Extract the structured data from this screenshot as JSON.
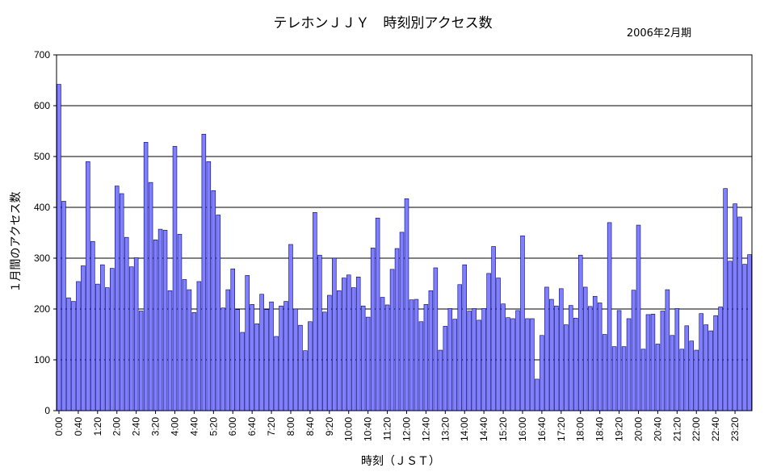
{
  "chart_data": {
    "type": "bar",
    "title": "テレホンＪＪＹ　時刻別アクセス数",
    "subtitle": "2006年2月期",
    "xlabel": "時刻（ＪＳＴ）",
    "ylabel": "１月間のアクセス数",
    "ylim": [
      0,
      700
    ],
    "yticks": [
      0,
      100,
      200,
      300,
      400,
      500,
      600,
      700
    ],
    "grid": true,
    "bar_color": "#8080FF",
    "bar_edge_color": "#000080",
    "interval_minutes": 10,
    "categories": [
      "0:00",
      "0:10",
      "0:20",
      "0:30",
      "0:40",
      "0:50",
      "1:00",
      "1:10",
      "1:20",
      "1:30",
      "1:40",
      "1:50",
      "2:00",
      "2:10",
      "2:20",
      "2:30",
      "2:40",
      "2:50",
      "3:00",
      "3:10",
      "3:20",
      "3:30",
      "3:40",
      "3:50",
      "4:00",
      "4:10",
      "4:20",
      "4:30",
      "4:40",
      "4:50",
      "5:00",
      "5:10",
      "5:20",
      "5:30",
      "5:40",
      "5:50",
      "6:00",
      "6:10",
      "6:20",
      "6:30",
      "6:40",
      "6:50",
      "7:00",
      "7:10",
      "7:20",
      "7:30",
      "7:40",
      "7:50",
      "8:00",
      "8:10",
      "8:20",
      "8:30",
      "8:40",
      "8:50",
      "9:00",
      "9:10",
      "9:20",
      "9:30",
      "9:40",
      "9:50",
      "10:00",
      "10:10",
      "10:20",
      "10:30",
      "10:40",
      "10:50",
      "11:00",
      "11:10",
      "11:20",
      "11:30",
      "11:40",
      "11:50",
      "12:00",
      "12:10",
      "12:20",
      "12:30",
      "12:40",
      "12:50",
      "13:00",
      "13:10",
      "13:20",
      "13:30",
      "13:40",
      "13:50",
      "14:00",
      "14:10",
      "14:20",
      "14:30",
      "14:40",
      "14:50",
      "15:00",
      "15:10",
      "15:20",
      "15:30",
      "15:40",
      "15:50",
      "16:00",
      "16:10",
      "16:20",
      "16:30",
      "16:40",
      "16:50",
      "17:00",
      "17:10",
      "17:20",
      "17:30",
      "17:40",
      "17:50",
      "18:00",
      "18:10",
      "18:20",
      "18:30",
      "18:40",
      "18:50",
      "19:00",
      "19:10",
      "19:20",
      "19:30",
      "19:40",
      "19:50",
      "20:00",
      "20:10",
      "20:20",
      "20:30",
      "20:40",
      "20:50",
      "21:00",
      "21:10",
      "21:20",
      "21:30",
      "21:40",
      "21:50",
      "22:00",
      "22:10",
      "22:20",
      "22:30",
      "22:40",
      "22:50",
      "23:00",
      "23:10",
      "23:20",
      "23:30",
      "23:40",
      "23:50"
    ],
    "tick_labels": [
      "0:00",
      "0:40",
      "1:20",
      "2:00",
      "2:40",
      "3:20",
      "4:00",
      "4:40",
      "5:20",
      "6:00",
      "6:40",
      "7:20",
      "8:00",
      "8:40",
      "9:20",
      "10:00",
      "10:40",
      "11:20",
      "12:00",
      "12:40",
      "13:20",
      "14:00",
      "14:40",
      "15:20",
      "16:00",
      "16:40",
      "17:20",
      "18:00",
      "18:40",
      "19:20",
      "20:00",
      "20:40",
      "21:20",
      "22:00",
      "22:40",
      "23:20"
    ],
    "values": [
      642,
      412,
      222,
      215,
      254,
      285,
      490,
      333,
      249,
      287,
      242,
      280,
      442,
      427,
      341,
      283,
      301,
      196,
      528,
      449,
      336,
      357,
      355,
      236,
      520,
      347,
      258,
      238,
      193,
      254,
      544,
      490,
      433,
      385,
      202,
      238,
      279,
      199,
      154,
      266,
      209,
      171,
      229,
      199,
      214,
      146,
      206,
      215,
      327,
      200,
      168,
      118,
      175,
      390,
      306,
      194,
      227,
      300,
      236,
      261,
      267,
      242,
      263,
      206,
      184,
      320,
      379,
      223,
      208,
      278,
      319,
      351,
      417,
      218,
      219,
      175,
      209,
      236,
      281,
      119,
      166,
      201,
      180,
      248,
      287,
      196,
      201,
      178,
      201,
      270,
      323,
      261,
      210,
      183,
      181,
      197,
      344,
      181,
      181,
      62,
      148,
      243,
      219,
      206,
      240,
      169,
      207,
      182,
      306,
      243,
      205,
      225,
      212,
      150,
      370,
      126,
      197,
      126,
      181,
      237,
      365,
      121,
      189,
      190,
      131,
      196,
      238,
      148,
      201,
      121,
      167,
      137,
      119,
      191,
      169,
      157,
      187,
      204,
      437,
      294,
      407,
      381,
      288,
      307
    ]
  }
}
